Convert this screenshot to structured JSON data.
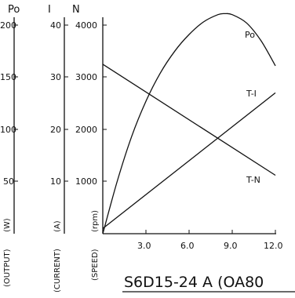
{
  "chart_data": {
    "type": "line",
    "title": "S6D15-24 A (OA80",
    "x_ticks": [
      "3.0",
      "6.0",
      "9.0",
      "12.0"
    ],
    "xlim": [
      0,
      12
    ],
    "axes": [
      {
        "key": "po",
        "symbol": "Po",
        "unit": "(W)",
        "name": "(OUTPUT)",
        "range": [
          0,
          250
        ],
        "ticks": [
          200,
          150,
          100,
          50
        ]
      },
      {
        "key": "i",
        "symbol": "I",
        "unit": "(A)",
        "name": "(CURRENT)",
        "range": [
          0,
          50
        ],
        "ticks": [
          40,
          30,
          20,
          10
        ]
      },
      {
        "key": "n",
        "symbol": "N",
        "unit": "(rpm)",
        "name": "(SPEED)",
        "range": [
          0,
          5000
        ],
        "ticks": [
          4000,
          3000,
          2000,
          1000
        ]
      }
    ],
    "series": [
      {
        "name": "Po",
        "axis": "po",
        "x": [
          0,
          1,
          2,
          3,
          4,
          5,
          6,
          7,
          8,
          8.5,
          9,
          10,
          11,
          12
        ],
        "values": [
          0,
          50,
          93,
          127,
          154,
          175,
          191,
          203,
          210,
          211,
          210,
          202,
          185,
          161
        ]
      },
      {
        "name": "T-I",
        "axis": "i",
        "x": [
          0,
          12
        ],
        "values": [
          1,
          27
        ]
      },
      {
        "name": "T-N",
        "axis": "n",
        "x": [
          0,
          12
        ],
        "values": [
          3250,
          1120
        ]
      }
    ]
  }
}
